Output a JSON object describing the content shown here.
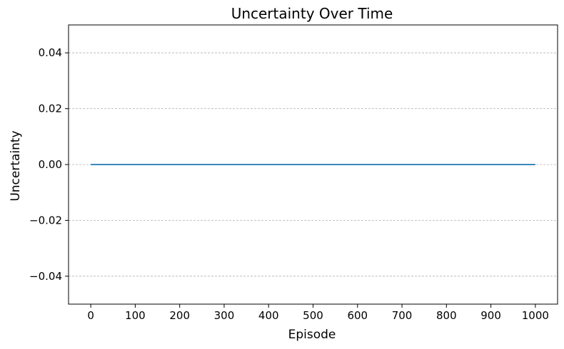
{
  "chart_data": {
    "type": "line",
    "title": "Uncertainty Over Time",
    "xlabel": "Episode",
    "ylabel": "Uncertainty",
    "xlim": [
      -50,
      1050
    ],
    "ylim": [
      -0.05,
      0.05
    ],
    "xticks": [
      0,
      100,
      200,
      300,
      400,
      500,
      600,
      700,
      800,
      900,
      1000
    ],
    "xtick_labels": [
      "0",
      "100",
      "200",
      "300",
      "400",
      "500",
      "600",
      "700",
      "800",
      "900",
      "1000"
    ],
    "yticks": [
      -0.04,
      -0.02,
      0.0,
      0.02,
      0.04
    ],
    "ytick_labels": [
      "−0.04",
      "−0.02",
      "0.00",
      "0.02",
      "0.04"
    ],
    "grid": "horizontal dashed",
    "series": [
      {
        "color": "#1f77b4",
        "x": [
          0,
          1000
        ],
        "y": [
          0,
          0
        ]
      }
    ]
  }
}
